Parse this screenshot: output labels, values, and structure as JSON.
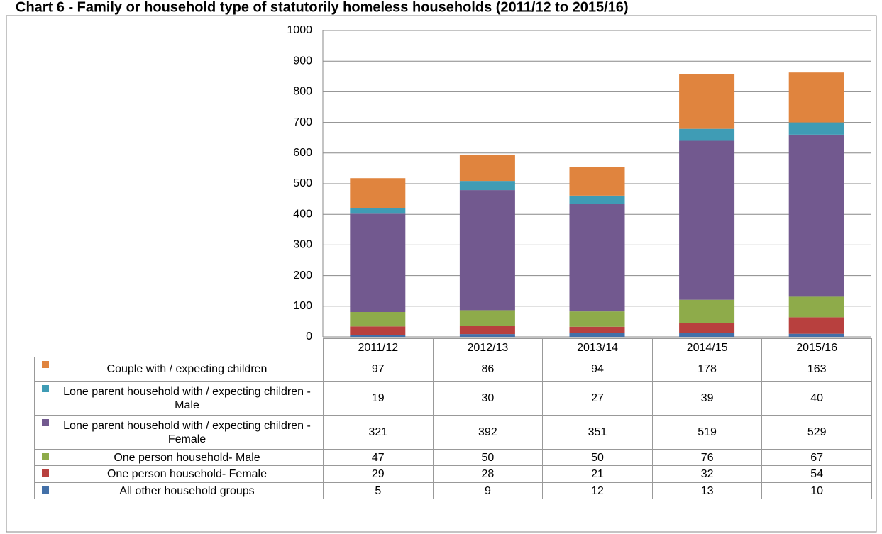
{
  "chart_data": {
    "type": "bar",
    "stacked": true,
    "title": "Chart 6 - Family or household type of statutorily homeless households (2011/12 to 2015/16)",
    "categories": [
      "2011/12",
      "2012/13",
      "2013/14",
      "2014/15",
      "2015/16"
    ],
    "series": [
      {
        "name": "Couple with / expecting children",
        "color": "#e0843e",
        "values": [
          97,
          86,
          94,
          178,
          163
        ]
      },
      {
        "name": "Lone parent household with / expecting children - Male",
        "color": "#3f9cb5",
        "values": [
          19,
          30,
          27,
          39,
          40
        ]
      },
      {
        "name": "Lone parent household with / expecting children - Female",
        "color": "#72598f",
        "values": [
          321,
          392,
          351,
          519,
          529
        ]
      },
      {
        "name": "One person household- Male",
        "color": "#8eab4a",
        "values": [
          47,
          50,
          50,
          76,
          67
        ]
      },
      {
        "name": "One person household- Female",
        "color": "#b8403e",
        "values": [
          29,
          28,
          21,
          32,
          54
        ]
      },
      {
        "name": "All other household groups",
        "color": "#4370a8",
        "values": [
          5,
          9,
          12,
          13,
          10
        ]
      }
    ],
    "ylim": [
      0,
      1000
    ],
    "yticks": [
      0,
      100,
      200,
      300,
      400,
      500,
      600,
      700,
      800,
      900,
      1000
    ],
    "grid": true
  }
}
